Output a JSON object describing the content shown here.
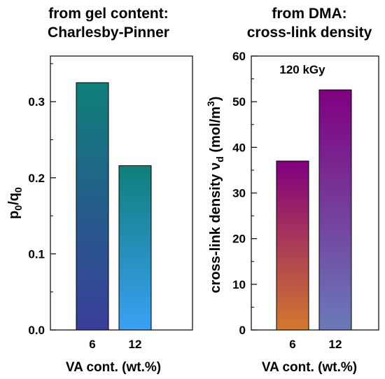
{
  "chart_data": [
    {
      "type": "bar",
      "title_lines": [
        "from gel content:",
        "Charlesby-Pinner"
      ],
      "ylabel_main": "p",
      "ylabel_sub1": "0",
      "ylabel_slash": "/q",
      "ylabel_sub2": "0",
      "xlabel": "VA cont. (wt.%)",
      "categories": [
        "6",
        "12"
      ],
      "values": [
        0.325,
        0.216
      ],
      "ylim": [
        0,
        0.36
      ],
      "yticks": [
        0.0,
        0.1,
        0.2,
        0.3
      ],
      "ytick_labels": [
        "0.0",
        "0.1",
        "0.2",
        "0.3"
      ],
      "bar_gradients": [
        {
          "top": "#0f7f7a",
          "bottom": "#3a3d9a"
        },
        {
          "top": "#0f7f7a",
          "bottom": "#3aa0f5"
        }
      ]
    },
    {
      "type": "bar",
      "title_lines": [
        "from DMA:",
        "cross-link density"
      ],
      "ylabel_main": "cross-link density ν",
      "ylabel_sub": "d",
      "ylabel_unit": " (mol/m",
      "ylabel_sup": "3",
      "ylabel_close": ")",
      "xlabel": "VA cont. (wt.%)",
      "annotation": "120 kGy",
      "categories": [
        "6",
        "12"
      ],
      "values": [
        37.0,
        52.6
      ],
      "ylim": [
        0,
        60
      ],
      "yticks": [
        0,
        10,
        20,
        30,
        40,
        50,
        60
      ],
      "ytick_labels": [
        "0",
        "10",
        "20",
        "30",
        "40",
        "50",
        "60"
      ],
      "bar_gradients": [
        {
          "top": "#800080",
          "bottom": "#d2792e"
        },
        {
          "top": "#800080",
          "bottom": "#6a7ab8"
        }
      ]
    }
  ]
}
